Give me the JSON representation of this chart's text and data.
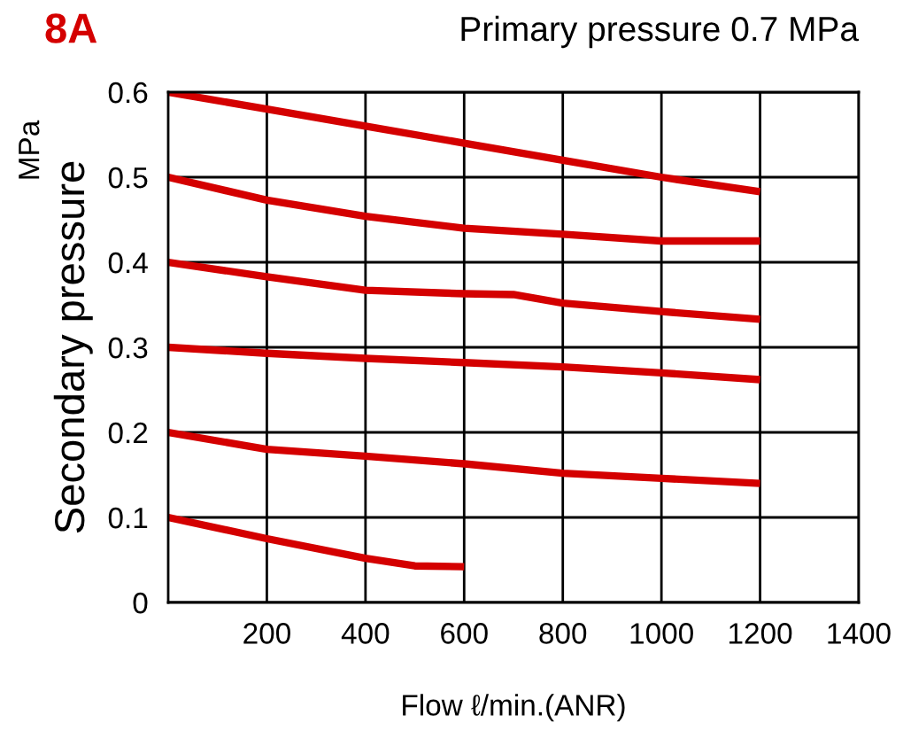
{
  "chart_data": {
    "type": "line",
    "title": "8A",
    "subtitle": "Primary pressure 0.7 MPa",
    "xlabel": "Flow ℓ/min.(ANR)",
    "ylabel": "Secondary pressure",
    "annotations": [
      "MPa"
    ],
    "xlim": [
      0,
      1400
    ],
    "xticks": [
      200,
      400,
      600,
      800,
      1000,
      1200,
      1400
    ],
    "ylim": [
      0,
      0.6
    ],
    "yticks": [
      0,
      0.1,
      0.2,
      0.3,
      0.4,
      0.5,
      0.6
    ],
    "grid": true,
    "legend": false,
    "marker": "none",
    "line_style": "solid",
    "series": [
      {
        "color": "#d40000",
        "x": [
          0,
          200,
          400,
          600,
          800,
          1000,
          1200
        ],
        "values": [
          0.6,
          0.58,
          0.56,
          0.54,
          0.52,
          0.5,
          0.483
        ]
      },
      {
        "color": "#d40000",
        "x": [
          0,
          200,
          400,
          600,
          800,
          1000,
          1200
        ],
        "values": [
          0.5,
          0.473,
          0.454,
          0.44,
          0.433,
          0.425,
          0.425
        ]
      },
      {
        "color": "#d40000",
        "x": [
          0,
          200,
          400,
          600,
          700,
          800,
          1000,
          1200
        ],
        "values": [
          0.4,
          0.383,
          0.367,
          0.363,
          0.362,
          0.352,
          0.342,
          0.333
        ]
      },
      {
        "color": "#d40000",
        "x": [
          0,
          200,
          400,
          600,
          800,
          1000,
          1200
        ],
        "values": [
          0.3,
          0.293,
          0.287,
          0.282,
          0.277,
          0.27,
          0.262
        ]
      },
      {
        "color": "#d40000",
        "x": [
          0,
          200,
          400,
          600,
          800,
          1000,
          1200
        ],
        "values": [
          0.2,
          0.18,
          0.172,
          0.163,
          0.152,
          0.146,
          0.14
        ]
      },
      {
        "color": "#d40000",
        "x": [
          0,
          200,
          400,
          500,
          600
        ],
        "values": [
          0.1,
          0.075,
          0.052,
          0.043,
          0.042
        ]
      }
    ]
  }
}
